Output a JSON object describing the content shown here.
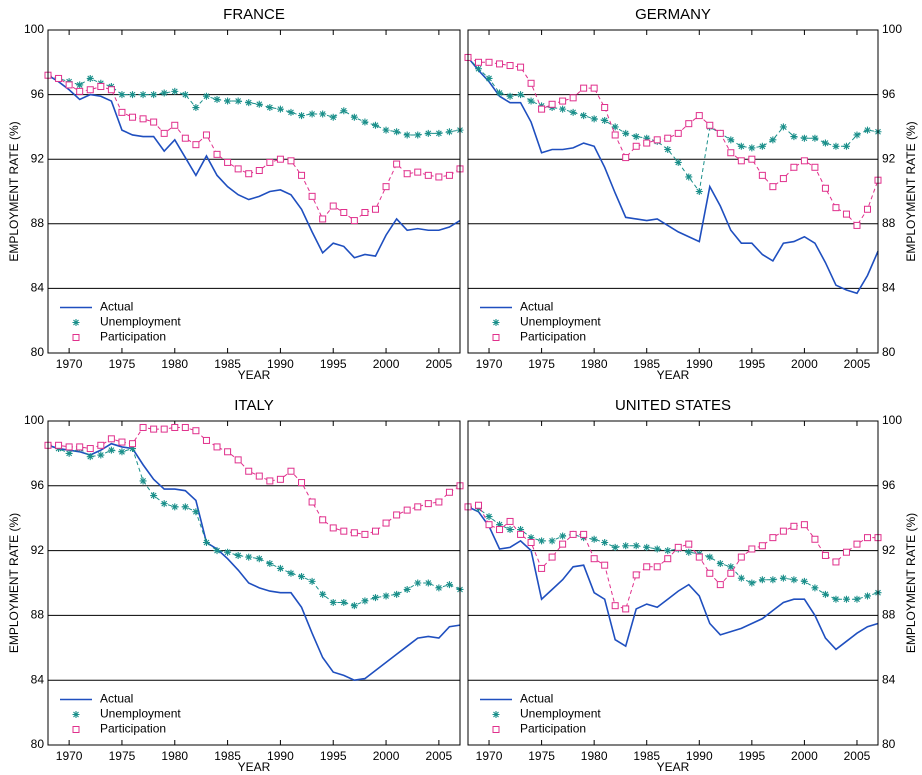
{
  "chart_data": [
    {
      "type": "line",
      "title": "FRANCE",
      "xlabel": "YEAR",
      "ylabel": "EMPLOYMENT RATE (%)",
      "yaxis": "left",
      "grid": true,
      "legend": "lower left",
      "x": [
        1968,
        1969,
        1970,
        1971,
        1972,
        1973,
        1974,
        1975,
        1976,
        1977,
        1978,
        1979,
        1980,
        1981,
        1982,
        1983,
        1984,
        1985,
        1986,
        1987,
        1988,
        1989,
        1990,
        1991,
        1992,
        1993,
        1994,
        1995,
        1996,
        1997,
        1998,
        1999,
        2000,
        2001,
        2002,
        2003,
        2004,
        2005,
        2006,
        2007
      ],
      "xlim": [
        1968,
        2007
      ],
      "xticks": [
        1970,
        1975,
        1980,
        1985,
        1990,
        1995,
        2000,
        2005
      ],
      "ylim": [
        80,
        100
      ],
      "yticks": [
        80,
        84,
        88,
        92,
        96,
        100
      ],
      "series": [
        {
          "name": "Actual",
          "color": "#1f4fbf",
          "linestyle": "solid",
          "marker": "none",
          "values": [
            97.2,
            96.8,
            96.3,
            95.7,
            96.0,
            95.9,
            95.6,
            93.8,
            93.5,
            93.4,
            93.4,
            92.5,
            93.2,
            92.1,
            91.0,
            92.2,
            91.0,
            90.3,
            89.8,
            89.5,
            89.7,
            90.0,
            90.1,
            89.8,
            88.9,
            87.5,
            86.2,
            86.8,
            86.6,
            85.9,
            86.1,
            86.0,
            87.3,
            88.3,
            87.6,
            87.7,
            87.6,
            87.6,
            87.8,
            88.2
          ]
        },
        {
          "name": "Unemployment",
          "color": "#1a8f8a",
          "linestyle": "dashed",
          "marker": "asterisk",
          "values": [
            97.2,
            97.0,
            96.8,
            96.6,
            97.0,
            96.7,
            96.5,
            96.0,
            96.0,
            96.0,
            96.0,
            96.1,
            96.2,
            96.0,
            95.2,
            95.9,
            95.7,
            95.6,
            95.6,
            95.5,
            95.4,
            95.2,
            95.1,
            94.9,
            94.7,
            94.8,
            94.8,
            94.6,
            95.0,
            94.6,
            94.3,
            94.1,
            93.8,
            93.7,
            93.5,
            93.5,
            93.6,
            93.6,
            93.7,
            93.8
          ]
        },
        {
          "name": "Participation",
          "color": "#e0308c",
          "linestyle": "dashed",
          "marker": "square",
          "values": [
            97.2,
            97.0,
            96.6,
            96.2,
            96.3,
            96.5,
            96.3,
            94.9,
            94.6,
            94.5,
            94.3,
            93.6,
            94.1,
            93.3,
            92.9,
            93.5,
            92.3,
            91.8,
            91.4,
            91.1,
            91.3,
            91.8,
            92.0,
            91.9,
            91.0,
            89.7,
            88.3,
            89.1,
            88.7,
            88.2,
            88.7,
            88.9,
            90.3,
            91.7,
            91.1,
            91.2,
            91.0,
            90.9,
            91.0,
            91.4
          ]
        }
      ]
    },
    {
      "type": "line",
      "title": "GERMANY",
      "xlabel": "YEAR",
      "ylabel": "EMPLOYMENT RATE (%)",
      "yaxis": "right",
      "grid": true,
      "legend": "lower left",
      "x": [
        1968,
        1969,
        1970,
        1971,
        1972,
        1973,
        1974,
        1975,
        1976,
        1977,
        1978,
        1979,
        1980,
        1981,
        1982,
        1983,
        1984,
        1985,
        1986,
        1987,
        1988,
        1989,
        1990,
        1991,
        1992,
        1993,
        1994,
        1995,
        1996,
        1997,
        1998,
        1999,
        2000,
        2001,
        2002,
        2003,
        2004,
        2005,
        2006,
        2007
      ],
      "xlim": [
        1968,
        2007
      ],
      "xticks": [
        1970,
        1975,
        1980,
        1985,
        1990,
        1995,
        2000,
        2005
      ],
      "ylim": [
        80,
        100
      ],
      "yticks": [
        80,
        84,
        88,
        92,
        96,
        100
      ],
      "series": [
        {
          "name": "Actual",
          "color": "#1f4fbf",
          "linestyle": "solid",
          "marker": "none",
          "values": [
            98.3,
            97.5,
            96.8,
            95.9,
            95.5,
            95.5,
            94.3,
            92.4,
            92.6,
            92.6,
            92.7,
            93.0,
            92.8,
            91.5,
            89.9,
            88.4,
            88.3,
            88.2,
            88.3,
            87.9,
            87.5,
            87.2,
            86.9,
            90.3,
            89.1,
            87.6,
            86.8,
            86.8,
            86.1,
            85.7,
            86.8,
            86.9,
            87.2,
            86.8,
            85.6,
            84.2,
            83.9,
            83.7,
            84.8,
            86.3
          ]
        },
        {
          "name": "Unemployment",
          "color": "#1a8f8a",
          "linestyle": "dashed",
          "marker": "asterisk",
          "values": [
            98.3,
            97.6,
            97.0,
            96.1,
            95.9,
            96.0,
            95.6,
            95.3,
            95.2,
            95.1,
            94.9,
            94.7,
            94.5,
            94.4,
            94.0,
            93.6,
            93.4,
            93.3,
            93.1,
            92.6,
            91.8,
            90.9,
            90.0,
            94.0,
            93.6,
            93.2,
            92.8,
            92.7,
            92.8,
            93.2,
            94.0,
            93.4,
            93.3,
            93.3,
            93.0,
            92.8,
            92.8,
            93.5,
            93.8,
            93.7
          ]
        },
        {
          "name": "Participation",
          "color": "#e0308c",
          "linestyle": "dashed",
          "marker": "square",
          "values": [
            98.3,
            98.0,
            98.0,
            97.9,
            97.8,
            97.7,
            96.7,
            95.1,
            95.4,
            95.6,
            95.8,
            96.4,
            96.4,
            95.2,
            93.5,
            92.1,
            92.8,
            93.0,
            93.2,
            93.3,
            93.6,
            94.2,
            94.7,
            94.1,
            93.6,
            92.4,
            91.9,
            92.0,
            91.0,
            90.3,
            90.8,
            91.5,
            91.9,
            91.5,
            90.2,
            89.0,
            88.6,
            87.9,
            88.9,
            90.7
          ]
        }
      ]
    },
    {
      "type": "line",
      "title": "ITALY",
      "xlabel": "YEAR",
      "ylabel": "EMPLOYMENT RATE (%)",
      "yaxis": "left",
      "grid": true,
      "legend": "lower left",
      "x": [
        1968,
        1969,
        1970,
        1971,
        1972,
        1973,
        1974,
        1975,
        1976,
        1977,
        1978,
        1979,
        1980,
        1981,
        1982,
        1983,
        1984,
        1985,
        1986,
        1987,
        1988,
        1989,
        1990,
        1991,
        1992,
        1993,
        1994,
        1995,
        1996,
        1997,
        1998,
        1999,
        2000,
        2001,
        2002,
        2003,
        2004,
        2005,
        2006,
        2007
      ],
      "xlim": [
        1968,
        2007
      ],
      "xticks": [
        1970,
        1975,
        1980,
        1985,
        1990,
        1995,
        2000,
        2005
      ],
      "ylim": [
        80,
        100
      ],
      "yticks": [
        80,
        84,
        88,
        92,
        96,
        100
      ],
      "series": [
        {
          "name": "Actual",
          "color": "#1f4fbf",
          "linestyle": "solid",
          "marker": "none",
          "values": [
            98.5,
            98.3,
            98.2,
            98.1,
            97.9,
            98.2,
            98.6,
            98.4,
            98.3,
            97.3,
            96.4,
            95.8,
            95.8,
            95.7,
            95.1,
            92.5,
            92.1,
            91.5,
            90.8,
            90.0,
            89.7,
            89.5,
            89.4,
            89.4,
            88.5,
            86.9,
            85.4,
            84.5,
            84.3,
            84.0,
            84.1,
            84.6,
            85.1,
            85.6,
            86.1,
            86.6,
            86.7,
            86.6,
            87.3,
            87.4
          ]
        },
        {
          "name": "Unemployment",
          "color": "#1a8f8a",
          "linestyle": "dashed",
          "marker": "asterisk",
          "values": [
            98.5,
            98.3,
            98.0,
            98.3,
            97.8,
            97.9,
            98.2,
            98.1,
            98.3,
            96.3,
            95.4,
            94.9,
            94.7,
            94.7,
            94.4,
            92.5,
            92.0,
            91.9,
            91.7,
            91.6,
            91.5,
            91.2,
            90.9,
            90.6,
            90.4,
            90.1,
            89.3,
            88.8,
            88.8,
            88.6,
            88.9,
            89.1,
            89.2,
            89.3,
            89.6,
            90.0,
            90.0,
            89.7,
            89.9,
            89.6
          ]
        },
        {
          "name": "Participation",
          "color": "#e0308c",
          "linestyle": "dashed",
          "marker": "square",
          "values": [
            98.5,
            98.5,
            98.4,
            98.4,
            98.3,
            98.5,
            98.9,
            98.7,
            98.6,
            99.6,
            99.5,
            99.5,
            99.6,
            99.6,
            99.4,
            98.8,
            98.4,
            98.1,
            97.6,
            96.9,
            96.6,
            96.3,
            96.4,
            96.9,
            96.2,
            95.0,
            93.9,
            93.4,
            93.2,
            93.1,
            93.0,
            93.2,
            93.7,
            94.2,
            94.5,
            94.7,
            94.9,
            95.0,
            95.6,
            96.0
          ]
        }
      ]
    },
    {
      "type": "line",
      "title": "UNITED STATES",
      "xlabel": "YEAR",
      "ylabel": "EMPLOYMENT RATE (%)",
      "yaxis": "right",
      "grid": true,
      "legend": "lower left",
      "x": [
        1968,
        1969,
        1970,
        1971,
        1972,
        1973,
        1974,
        1975,
        1976,
        1977,
        1978,
        1979,
        1980,
        1981,
        1982,
        1983,
        1984,
        1985,
        1986,
        1987,
        1988,
        1989,
        1990,
        1991,
        1992,
        1993,
        1994,
        1995,
        1996,
        1997,
        1998,
        1999,
        2000,
        2001,
        2002,
        2003,
        2004,
        2005,
        2006,
        2007
      ],
      "xlim": [
        1968,
        2007
      ],
      "xticks": [
        1970,
        1975,
        1980,
        1985,
        1990,
        1995,
        2000,
        2005
      ],
      "ylim": [
        80,
        100
      ],
      "yticks": [
        80,
        84,
        88,
        92,
        96,
        100
      ],
      "series": [
        {
          "name": "Actual",
          "color": "#1f4fbf",
          "linestyle": "solid",
          "marker": "none",
          "values": [
            94.7,
            94.4,
            93.5,
            92.1,
            92.2,
            92.6,
            92.0,
            89.0,
            89.6,
            90.2,
            91.0,
            91.1,
            89.4,
            89.0,
            86.5,
            86.1,
            88.4,
            88.7,
            88.5,
            89.0,
            89.5,
            89.9,
            89.2,
            87.5,
            86.8,
            87.0,
            87.2,
            87.5,
            87.8,
            88.3,
            88.8,
            89.0,
            89.0,
            88.0,
            86.6,
            85.9,
            86.4,
            86.9,
            87.3,
            87.5
          ]
        },
        {
          "name": "Unemployment",
          "color": "#1a8f8a",
          "linestyle": "dashed",
          "marker": "asterisk",
          "values": [
            94.7,
            94.6,
            94.1,
            93.6,
            93.3,
            93.3,
            92.8,
            92.6,
            92.6,
            92.9,
            93.0,
            92.8,
            92.7,
            92.5,
            92.2,
            92.3,
            92.3,
            92.2,
            92.1,
            92.0,
            92.1,
            91.9,
            91.8,
            91.6,
            91.2,
            91.0,
            90.3,
            90.0,
            90.2,
            90.2,
            90.3,
            90.2,
            90.1,
            89.7,
            89.3,
            89.0,
            89.0,
            89.0,
            89.2,
            89.4
          ]
        },
        {
          "name": "Participation",
          "color": "#e0308c",
          "linestyle": "dashed",
          "marker": "square",
          "values": [
            94.7,
            94.8,
            93.6,
            93.3,
            93.8,
            93.0,
            92.5,
            90.9,
            91.6,
            92.4,
            93.0,
            93.0,
            91.5,
            91.1,
            88.6,
            88.4,
            90.5,
            91.0,
            91.0,
            91.5,
            92.2,
            92.4,
            91.6,
            90.6,
            89.9,
            90.6,
            91.6,
            92.1,
            92.3,
            92.8,
            93.2,
            93.5,
            93.6,
            92.7,
            91.7,
            91.3,
            91.9,
            92.4,
            92.8,
            92.8
          ]
        }
      ]
    }
  ]
}
